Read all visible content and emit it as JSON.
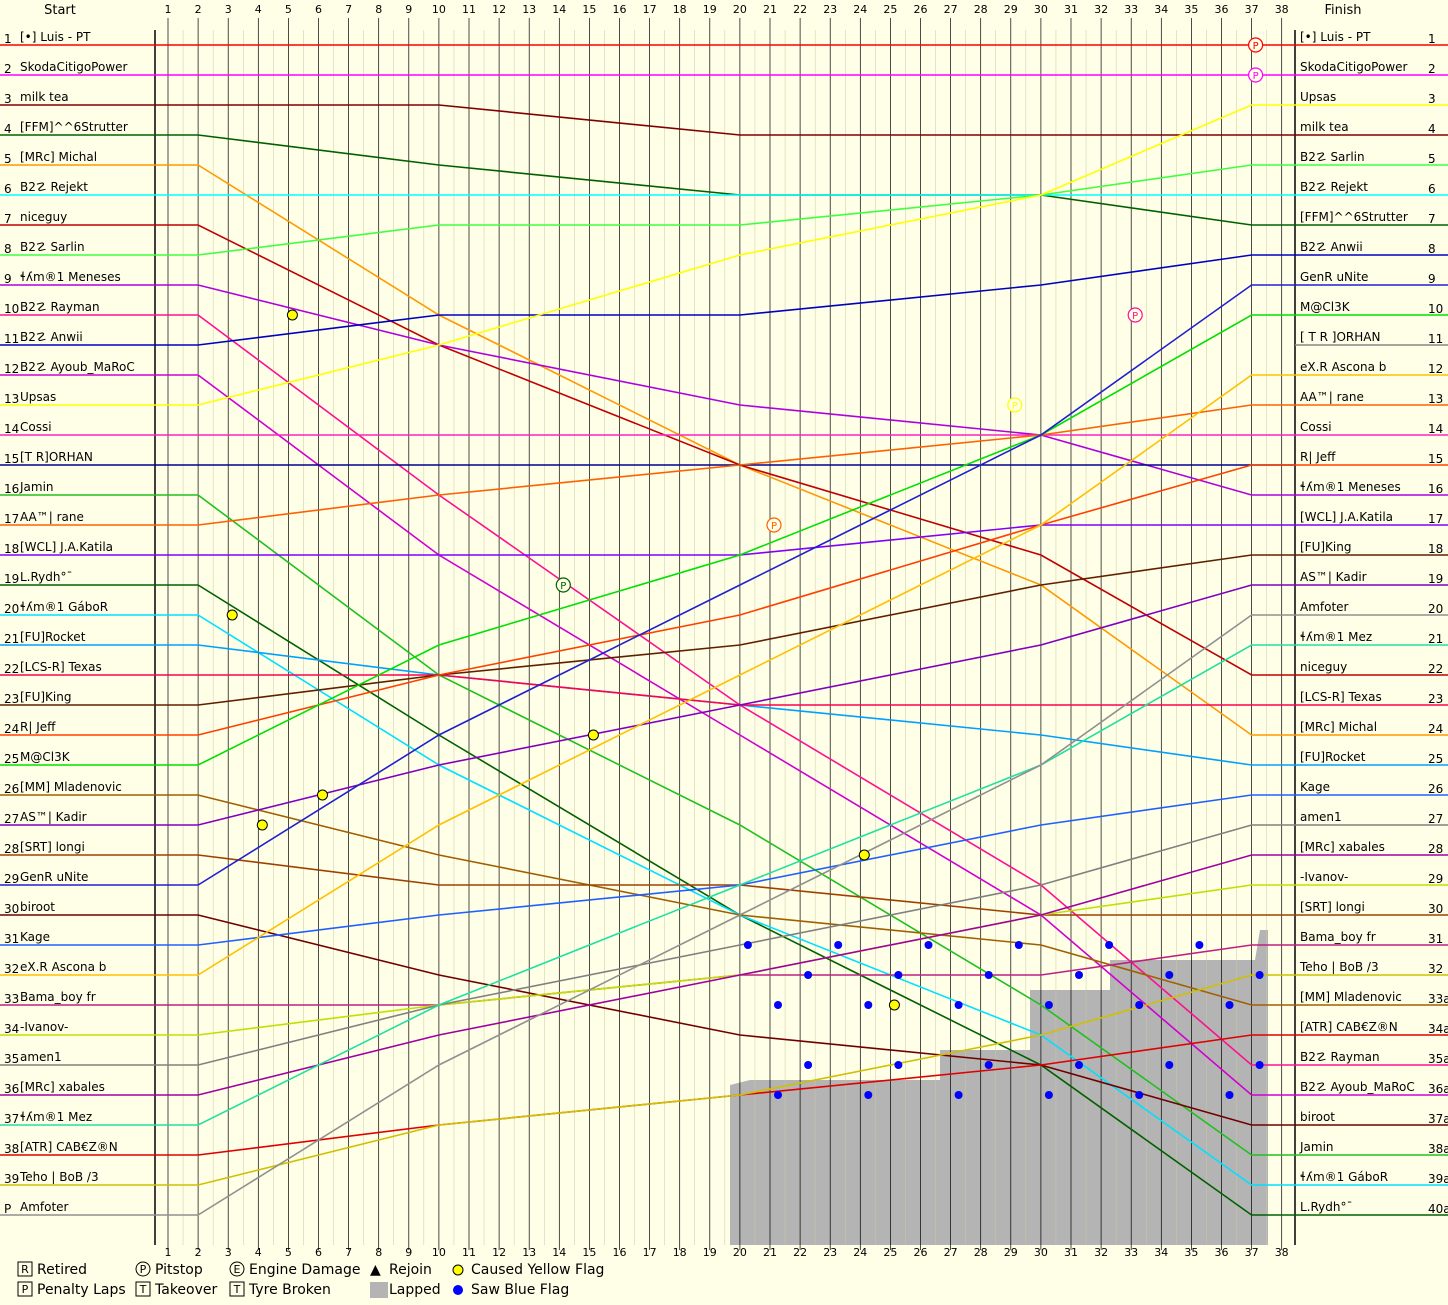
{
  "header": {
    "start_label": "Start",
    "finish_label": "Finish"
  },
  "chart_data": {
    "type": "line",
    "laps": 38,
    "x_ticks": [
      "1",
      "2",
      "3",
      "4",
      "5",
      "6",
      "7",
      "8",
      "9",
      "10",
      "11",
      "12",
      "13",
      "14",
      "15",
      "16",
      "17",
      "18",
      "19",
      "20",
      "21",
      "22",
      "23",
      "24",
      "25",
      "26",
      "27",
      "28",
      "29",
      "30",
      "31",
      "32",
      "33",
      "34",
      "35",
      "36",
      "37",
      "38"
    ],
    "left_positions": [
      "1",
      "2",
      "3",
      "4",
      "5",
      "6",
      "7",
      "8",
      "9",
      "10",
      "11",
      "12",
      "13",
      "14",
      "15",
      "16",
      "17",
      "18",
      "19",
      "20",
      "21",
      "22",
      "23",
      "24",
      "25",
      "26",
      "27",
      "28",
      "29",
      "30",
      "31",
      "32",
      "33",
      "34",
      "35",
      "36",
      "37",
      "38",
      "39",
      "P"
    ],
    "right_positions": [
      "1",
      "2",
      "3",
      "4",
      "5",
      "6",
      "7",
      "8",
      "9",
      "10",
      "11",
      "12",
      "13",
      "14",
      "15",
      "16",
      "17",
      "18",
      "19",
      "20",
      "21",
      "22",
      "23",
      "24",
      "25",
      "26",
      "27",
      "28",
      "29",
      "30",
      "31",
      "32",
      "33a",
      "34a",
      "35a",
      "36a",
      "37a",
      "38a",
      "39a",
      "40a"
    ],
    "start_order": [
      {
        "name": "[•] Luis - PT",
        "color": "#ff0000"
      },
      {
        "name": "SkodaCitigoPower",
        "color": "#ff00ff"
      },
      {
        "name": "milk tea",
        "color": "#800000"
      },
      {
        "name": "[FFM]^^6Strutter",
        "color": "#006000"
      },
      {
        "name": "[MRc] Michal",
        "color": "#ff9900"
      },
      {
        "name": "B2☡ Rejekt",
        "color": "#00ffff"
      },
      {
        "name": "niceguy",
        "color": "#c00000"
      },
      {
        "name": "B2☡ Sarlin",
        "color": "#40ff40"
      },
      {
        "name": "ɬʎm®1 Meneses",
        "color": "#b000e0"
      },
      {
        "name": "B2☡ Rayman",
        "color": "#ff1090"
      },
      {
        "name": "B2☡ Anwii",
        "color": "#0000c0"
      },
      {
        "name": "B2☡ Ayoub_MaRoC",
        "color": "#d000d0"
      },
      {
        "name": "Upsas",
        "color": "#ffff00"
      },
      {
        "name": "Cossi",
        "color": "#ff20c0"
      },
      {
        "name": "[T R]ORHAN",
        "color": "#000090"
      },
      {
        "name": "Jamin",
        "color": "#20c020"
      },
      {
        "name": "AA™| rane",
        "color": "#ff6000"
      },
      {
        "name": "[WCL] J.A.Katila",
        "color": "#8000ff"
      },
      {
        "name": "L.Rydh°¯",
        "color": "#006000"
      },
      {
        "name": "ɬʎm®1 GáboR",
        "color": "#00e0ff"
      },
      {
        "name": "[FU]Rocket",
        "color": "#00a0ff"
      },
      {
        "name": "[LCS-R] Texas",
        "color": "#ff0050"
      },
      {
        "name": "[FU]King",
        "color": "#602000"
      },
      {
        "name": "R| Jeff",
        "color": "#ff4000"
      },
      {
        "name": "M@Cl3K",
        "color": "#00e000"
      },
      {
        "name": "[MM] Mladenovic",
        "color": "#a06000"
      },
      {
        "name": "AS™| Kadir",
        "color": "#8000c0"
      },
      {
        "name": "[SRT] longi",
        "color": "#a04000"
      },
      {
        "name": "GenR uNite",
        "color": "#2020d0"
      },
      {
        "name": "biroot",
        "color": "#700000"
      },
      {
        "name": "Kage",
        "color": "#2060ff"
      },
      {
        "name": "eX.R Ascona b",
        "color": "#ffc000"
      },
      {
        "name": "Bama_boy fr",
        "color": "#c02080"
      },
      {
        "name": "-Ivanov-",
        "color": "#c0e000"
      },
      {
        "name": "amen1",
        "color": "#808080"
      },
      {
        "name": "[MRc] xabales",
        "color": "#a000a0"
      },
      {
        "name": "ɬʎm®1 Mez",
        "color": "#20e0a0"
      },
      {
        "name": "[ATR] CAB€Z®N",
        "color": "#e00000"
      },
      {
        "name": "Teho | BoB /3",
        "color": "#d0c000"
      },
      {
        "name": "Amfoter",
        "color": "#909090"
      }
    ],
    "finish_order": [
      "[•] Luis - PT",
      "SkodaCitigoPower",
      "Upsas",
      "milk tea",
      "B2☡ Sarlin",
      "B2☡ Rejekt",
      "[FFM]^^6Strutter",
      "B2☡ Anwii",
      "GenR uNite",
      "M@Cl3K",
      "[ T R ]ORHAN",
      "eX.R Ascona b",
      "AA™| rane",
      "Cossi",
      "R| Jeff",
      "ɬʎm®1 Meneses",
      "[WCL] J.A.Katila",
      "[FU]King",
      "AS™| Kadir",
      "Amfoter",
      "ɬʎm®1 Mez",
      "niceguy",
      "[LCS-R] Texas",
      "[MRc] Michal",
      "[FU]Rocket",
      "Kage",
      "amen1",
      "[MRc] xabales",
      "-Ivanov-",
      "[SRT] longi",
      "Bama_boy fr",
      "Teho | BoB /3",
      "[MM] Mladenovic",
      "[ATR] CAB€Z®N",
      "B2☡ Rayman",
      "B2☡ Ayoub_MaRoC",
      "biroot",
      "Jamin",
      "ɬʎm®1 GáboR",
      "L.Rydh°¯"
    ],
    "legend": [
      {
        "icon": "R",
        "label": "Retired"
      },
      {
        "icon": "P",
        "label": "Penalty Laps"
      },
      {
        "icon": "P",
        "label": "Pitstop"
      },
      {
        "icon": "T",
        "label": "Takeover"
      },
      {
        "icon": "E",
        "label": "Engine Damage"
      },
      {
        "icon": "T",
        "label": "Tyre Broken"
      },
      {
        "icon": "▲",
        "label": "Rejoin"
      },
      {
        "icon": "lapped",
        "label": "Lapped"
      },
      {
        "icon": "yellow-dot",
        "label": "Caused Yellow Flag"
      },
      {
        "icon": "blue-dot",
        "label": "Saw Blue Flag"
      }
    ],
    "colors": {
      "background": "#ffffe8",
      "grid": "#000000",
      "lapped": "#b4b4b4",
      "yellow_flag": "#ffff00",
      "blue_flag": "#0000ff"
    }
  }
}
